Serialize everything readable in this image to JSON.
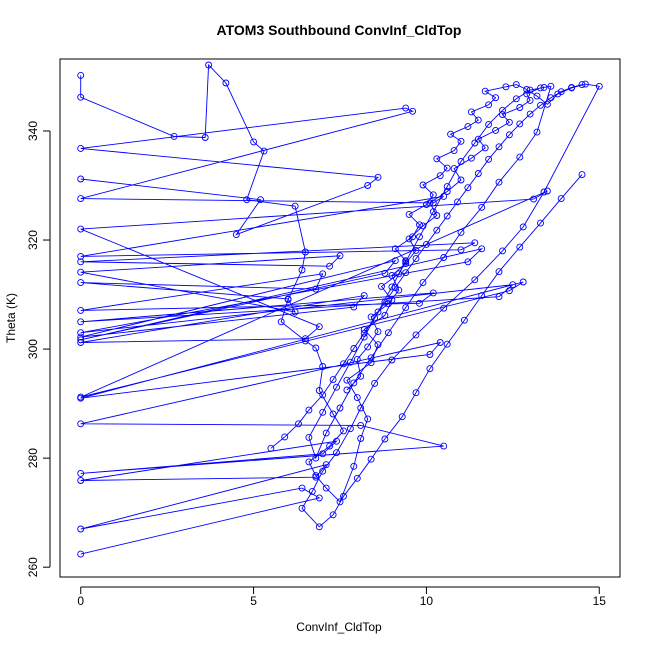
{
  "chart_data": {
    "type": "line",
    "title": "ATOM3 Southbound ConvInf_CldTop",
    "xlabel": "ConvInf_CldTop",
    "ylabel": "Theta (K)",
    "xlim": [
      -0.6,
      15.6
    ],
    "ylim": [
      258.2,
      353.2
    ],
    "x_ticks": [
      0,
      5,
      10,
      15
    ],
    "y_ticks": [
      260,
      280,
      300,
      320,
      340
    ],
    "grid": false,
    "legend": "none",
    "series_color": "#0000ff",
    "markers": "open-circle",
    "series": [
      {
        "x": [
          0,
          0,
          2.7,
          3.6,
          3.7,
          4.2,
          5.0,
          5.3,
          4.8,
          6.2,
          6.5,
          6.4,
          6.0,
          5.8,
          6.5,
          6.8,
          7.0,
          6.9,
          7.3,
          7.6,
          7.2,
          6.6,
          6.8,
          7.1,
          7.5,
          7.9,
          8.1,
          8.3,
          8.0,
          7.7,
          8.4,
          8.6,
          8.2,
          8.8,
          9.0,
          8.7,
          9.2,
          9.4,
          9.1,
          9.6,
          9.8,
          9.5,
          10.0,
          10.2,
          9.9,
          10.4,
          10.6,
          10.3,
          10.8,
          11.0,
          10.7,
          11.2,
          11.5,
          11.3,
          11.8,
          12.0,
          11.7,
          12.3,
          12.6,
          12.9,
          13.2,
          13.5,
          13.8,
          14.2,
          14.6,
          15.0,
          13.4,
          12.8,
          12.2,
          11.4,
          10.5,
          9.7,
          9.0,
          8.5,
          8.1,
          7.8,
          7.4,
          7.0,
          6.7,
          6.4,
          6.9,
          7.3,
          7.6,
          8.0,
          8.4,
          8.8,
          9.3,
          9.7,
          10.1,
          10.6,
          11.1,
          11.6,
          12.1,
          12.7,
          13.3,
          13.9,
          14.5
        ],
        "y": [
          350.2,
          346.2,
          339.0,
          338.8,
          352.1,
          348.8,
          338.0,
          336.3,
          327.4,
          326.2,
          317.8,
          314.5,
          309.1,
          305.0,
          301.5,
          300.2,
          296.8,
          292.4,
          288.1,
          285.0,
          282.2,
          279.3,
          276.8,
          274.5,
          272.0,
          278.5,
          283.6,
          287.2,
          291.1,
          294.3,
          297.5,
          300.8,
          303.6,
          306.2,
          309.0,
          311.5,
          313.8,
          316.2,
          318.4,
          320.6,
          322.8,
          324.7,
          326.5,
          328.3,
          330.1,
          331.8,
          333.2,
          334.9,
          336.4,
          338.1,
          339.4,
          340.8,
          342.0,
          343.5,
          344.8,
          346.1,
          347.3,
          348.1,
          348.5,
          347.6,
          346.4,
          344.9,
          346.8,
          347.9,
          348.6,
          348.2,
          328.8,
          322.4,
          318.0,
          312.7,
          307.5,
          302.6,
          298.0,
          293.7,
          289.2,
          285.4,
          281.0,
          277.6,
          273.9,
          270.8,
          267.4,
          269.6,
          273.0,
          276.3,
          279.8,
          283.5,
          287.6,
          292.0,
          296.4,
          300.9,
          305.3,
          309.8,
          314.2,
          318.7,
          323.1,
          327.6,
          332.0
        ]
      },
      {
        "x": [
          0,
          5.2,
          4.5,
          8.3,
          8.6,
          0,
          9.4,
          9.6,
          0,
          10.2,
          10.5,
          0,
          11.0,
          11.4,
          0,
          7.2,
          7.5,
          0,
          6.2,
          6.0,
          0,
          6.8,
          7.0,
          0,
          9.8,
          10.2,
          0,
          12.1,
          12.5,
          0,
          11.2,
          11.6,
          0,
          8.8,
          9.1,
          0,
          7.9,
          8.2,
          0,
          6.5,
          6.9,
          0,
          13.1,
          13.5,
          0,
          12.4,
          12.8,
          0,
          10.1,
          10.4,
          0,
          8.1,
          10.5,
          0,
          7.0,
          7.4,
          0,
          6.8,
          7.1,
          0,
          6.4,
          6.9,
          0
        ],
        "y": [
          331.2,
          327.4,
          321.0,
          330.0,
          331.5,
          336.8,
          344.2,
          343.6,
          327.6,
          326.8,
          328.0,
          317.0,
          318.2,
          319.5,
          316.0,
          315.2,
          317.1,
          314.1,
          306.8,
          309.2,
          312.2,
          311.0,
          313.8,
          307.1,
          308.4,
          310.3,
          305.0,
          309.6,
          311.8,
          303.0,
          316.0,
          318.4,
          301.7,
          313.9,
          316.2,
          302.2,
          307.7,
          309.8,
          301.2,
          301.9,
          304.1,
          322.0,
          327.5,
          329.0,
          291.2,
          310.7,
          312.3,
          291.0,
          299.0,
          301.2,
          286.3,
          286.0,
          282.2,
          277.2,
          280.8,
          283.1,
          275.9,
          276.5,
          278.8,
          267.0,
          274.5,
          272.7,
          262.4
        ]
      },
      {
        "x": [
          7.7,
          8.1,
          8.0,
          8.3,
          8.6,
          8.4,
          8.9,
          9.2,
          9.0,
          9.4,
          9.7,
          9.5,
          9.9,
          10.3,
          10.1,
          10.6,
          11.0,
          10.8,
          11.3,
          11.7,
          11.5,
          12.0,
          12.4,
          12.2,
          12.7,
          13.0,
          12.9,
          13.3,
          13.6,
          13.2,
          12.7,
          12.1,
          11.6,
          11.0,
          10.5,
          9.9,
          9.4,
          8.9,
          8.4,
          7.9,
          7.5,
          7.1,
          6.8,
          6.6,
          7.0,
          7.4,
          7.8,
          8.2,
          8.6,
          9.0,
          9.4,
          9.8,
          10.2,
          10.6,
          11.0,
          11.4,
          11.8,
          12.2,
          12.6,
          13.0,
          13.4
        ],
        "y": [
          292.5,
          295.0,
          298.1,
          300.4,
          303.2,
          305.9,
          308.3,
          310.8,
          313.5,
          315.7,
          318.1,
          320.2,
          322.6,
          324.5,
          326.8,
          328.9,
          331.0,
          333.1,
          335.0,
          336.9,
          338.5,
          340.1,
          341.6,
          343.0,
          344.3,
          345.6,
          346.8,
          347.9,
          348.2,
          339.8,
          335.2,
          330.6,
          326.0,
          321.4,
          316.8,
          312.2,
          307.6,
          303.0,
          298.4,
          293.8,
          289.2,
          284.6,
          280.0,
          283.8,
          288.4,
          293.0,
          297.6,
          302.2,
          306.8,
          311.4,
          316.0,
          320.6,
          325.2,
          329.8,
          334.4,
          337.8,
          341.2,
          343.8,
          345.9,
          347.5,
          348.0
        ]
      },
      {
        "x": [
          5.5,
          5.9,
          6.3,
          6.6,
          7.0,
          7.3,
          7.6,
          7.9,
          8.2,
          8.5,
          8.8,
          9.1,
          9.4,
          9.7,
          10.0,
          10.3,
          10.6,
          10.9,
          11.2,
          11.5,
          11.8,
          12.1,
          12.4,
          12.7,
          13.0,
          13.3,
          13.6,
          13.9,
          14.2,
          14.5
        ],
        "y": [
          281.8,
          283.9,
          286.3,
          288.8,
          291.6,
          294.4,
          297.3,
          300.1,
          302.9,
          305.7,
          308.6,
          311.3,
          314.0,
          316.6,
          319.2,
          321.8,
          324.4,
          327.0,
          329.6,
          332.2,
          334.8,
          337.1,
          339.3,
          341.3,
          343.1,
          344.7,
          346.1,
          347.2,
          348.0,
          348.5
        ]
      }
    ]
  }
}
